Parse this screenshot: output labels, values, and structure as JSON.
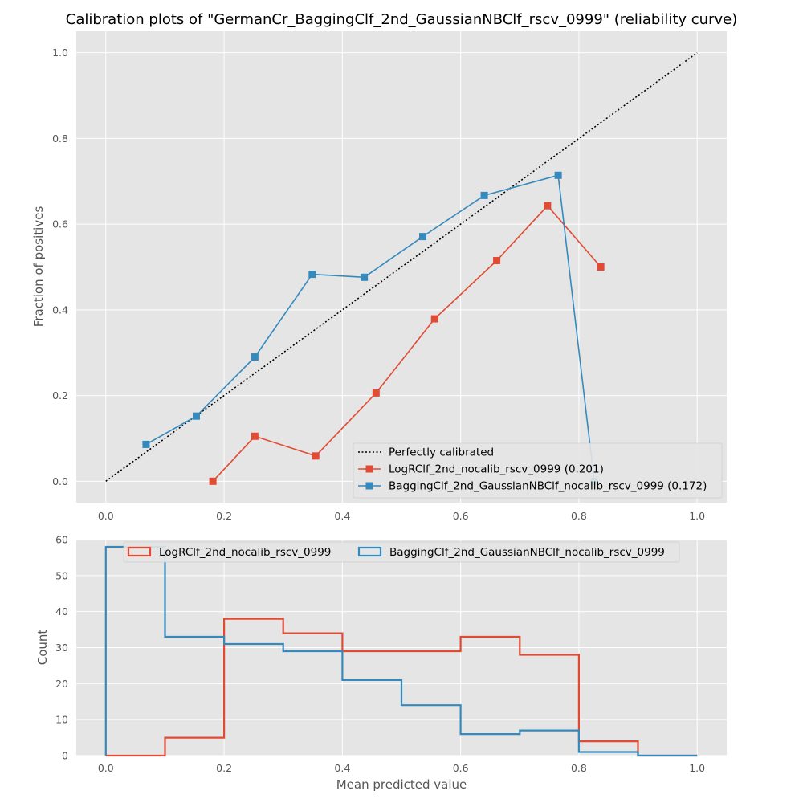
{
  "chart_data": [
    {
      "type": "line",
      "title": "Calibration plots of \"GermanCr_BaggingClf_2nd_GaussianNBClf_rscv_0999\" (reliability curve)",
      "xlabel": "",
      "ylabel": "Fraction of positives",
      "xlim": [
        -0.05,
        1.05
      ],
      "ylim": [
        -0.05,
        1.05
      ],
      "xticks": [
        "0.0",
        "0.2",
        "0.4",
        "0.6",
        "0.8",
        "1.0"
      ],
      "yticks": [
        "0.0",
        "0.2",
        "0.4",
        "0.6",
        "0.8",
        "1.0"
      ],
      "grid": true,
      "legend": "lower-right",
      "series": [
        {
          "name": "Perfectly calibrated",
          "color": "#000000",
          "style": "dotted",
          "x": [
            0,
            1
          ],
          "y": [
            0,
            1
          ]
        },
        {
          "name": "LogRClf_2nd_nocalib_rscv_0999 (0.201)",
          "color": "#e24a33",
          "marker": "square",
          "x": [
            0.181,
            0.252,
            0.355,
            0.457,
            0.556,
            0.661,
            0.747,
            0.837
          ],
          "y": [
            0.0,
            0.105,
            0.059,
            0.206,
            0.379,
            0.515,
            0.643,
            0.5
          ]
        },
        {
          "name": "BaggingClf_2nd_GaussianNBClf_nocalib_rscv_0999 (0.172)",
          "color": "#348abd",
          "marker": "square",
          "x": [
            0.068,
            0.153,
            0.252,
            0.349,
            0.437,
            0.536,
            0.64,
            0.765,
            0.826
          ],
          "y": [
            0.086,
            0.152,
            0.29,
            0.483,
            0.476,
            0.571,
            0.667,
            0.714,
            0.0
          ]
        }
      ]
    },
    {
      "type": "histogram",
      "title": "",
      "xlabel": "Mean predicted value",
      "ylabel": "Count",
      "xlim": [
        -0.05,
        1.05
      ],
      "ylim": [
        0,
        60
      ],
      "xticks": [
        "0.0",
        "0.2",
        "0.4",
        "0.6",
        "0.8",
        "1.0"
      ],
      "yticks": [
        "0",
        "10",
        "20",
        "30",
        "40",
        "50",
        "60"
      ],
      "grid": true,
      "legend": "upper-center",
      "bin_edges": [
        0.0,
        0.1,
        0.2,
        0.3,
        0.4,
        0.5,
        0.6,
        0.7,
        0.8,
        0.9,
        1.0
      ],
      "series": [
        {
          "name": "LogRClf_2nd_nocalib_rscv_0999",
          "color": "#e24a33",
          "values": [
            0,
            5,
            38,
            34,
            29,
            29,
            33,
            28,
            4,
            0
          ]
        },
        {
          "name": "BaggingClf_2nd_GaussianNBClf_nocalib_rscv_0999",
          "color": "#348abd",
          "values": [
            58,
            33,
            31,
            29,
            21,
            14,
            6,
            7,
            1,
            0
          ]
        }
      ]
    }
  ]
}
